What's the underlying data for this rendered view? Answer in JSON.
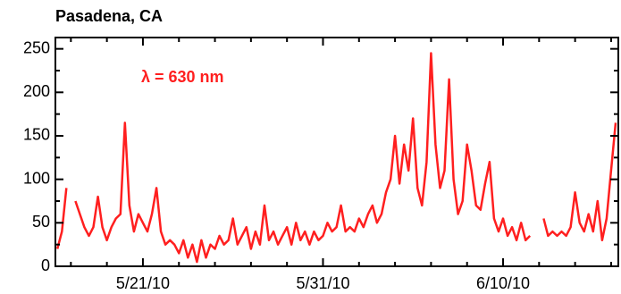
{
  "chart_data": {
    "type": "line",
    "title": "Pasadena, CA",
    "annotation": "λ = 630 nm",
    "x": [
      0.25,
      0.5,
      0.75,
      1.0,
      1.25,
      1.5,
      1.75,
      2.0,
      2.25,
      2.5,
      2.75,
      3.0,
      3.25,
      3.5,
      3.75,
      4.0,
      4.25,
      4.5,
      4.75,
      5.0,
      5.25,
      5.5,
      5.75,
      6.0,
      6.25,
      6.5,
      6.75,
      7.0,
      7.25,
      7.5,
      7.75,
      8.0,
      8.25,
      8.5,
      8.75,
      9.0,
      9.25,
      9.5,
      9.75,
      10.0,
      10.25,
      10.5,
      10.75,
      11.0,
      11.25,
      11.5,
      11.75,
      12.0,
      12.25,
      12.5,
      12.75,
      13.0,
      13.25,
      13.5,
      13.75,
      14.0,
      14.25,
      14.5,
      14.75,
      15.0,
      15.25,
      15.5,
      15.75,
      16.0,
      16.25,
      16.5,
      16.75,
      17.0,
      17.25,
      17.5,
      17.75,
      18.0,
      18.25,
      18.5,
      18.75,
      19.0,
      19.25,
      19.5,
      19.75,
      20.0,
      20.25,
      20.5,
      20.75,
      21.0,
      21.25,
      21.5,
      21.75,
      22.0,
      22.25,
      22.5,
      22.75,
      23.0,
      23.25,
      23.5,
      23.75,
      24.0,
      24.25,
      24.5,
      24.75,
      25.0,
      25.25,
      25.5,
      25.75,
      26.0,
      26.25,
      26.5,
      26.75,
      27.0,
      27.25,
      27.5,
      27.75,
      28.0,
      28.25,
      28.5,
      28.75,
      29.0,
      29.25,
      29.5,
      29.75,
      30.0,
      30.25,
      30.5,
      30.75,
      31.0,
      31.25
    ],
    "series": [
      {
        "color": "#ff1f1f",
        "values": [
          20,
          40,
          90,
          null,
          75,
          60,
          45,
          35,
          45,
          80,
          45,
          30,
          45,
          55,
          60,
          165,
          70,
          40,
          60,
          50,
          40,
          60,
          90,
          40,
          25,
          30,
          25,
          15,
          30,
          10,
          25,
          5,
          30,
          10,
          25,
          20,
          35,
          25,
          30,
          55,
          25,
          35,
          45,
          20,
          40,
          25,
          70,
          30,
          40,
          25,
          35,
          45,
          25,
          50,
          30,
          40,
          25,
          40,
          30,
          35,
          50,
          40,
          45,
          70,
          40,
          45,
          40,
          55,
          45,
          60,
          70,
          50,
          60,
          85,
          100,
          150,
          95,
          140,
          110,
          170,
          90,
          70,
          120,
          245,
          140,
          90,
          110,
          215,
          100,
          60,
          75,
          140,
          110,
          70,
          65,
          95,
          120,
          55,
          40,
          55,
          35,
          45,
          30,
          50,
          30,
          35,
          null,
          null,
          55,
          35,
          40,
          35,
          40,
          35,
          45,
          85,
          50,
          40,
          60,
          40,
          75,
          30,
          55,
          110,
          165
        ]
      }
    ],
    "xlim": [
      0.14,
      31.4
    ],
    "xticks": [
      {
        "value": 5,
        "label": "5/21/10"
      },
      {
        "value": 15,
        "label": "5/31/10"
      },
      {
        "value": 25,
        "label": "6/10/10"
      }
    ],
    "xticks_minor": [
      1,
      3,
      7,
      9,
      11,
      13,
      17,
      19,
      21,
      23,
      27,
      29,
      31
    ],
    "ylim": [
      0,
      263
    ],
    "yticks": [
      0,
      50,
      100,
      150,
      200,
      250
    ],
    "yticks_minor": [
      25,
      75,
      125,
      175,
      225
    ]
  }
}
